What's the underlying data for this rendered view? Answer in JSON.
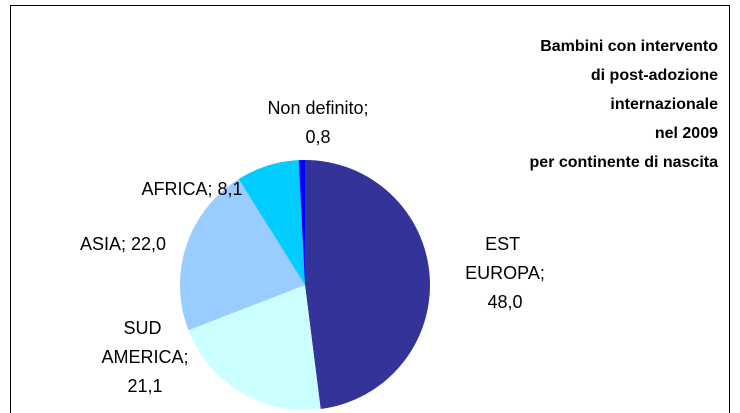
{
  "chart_data": {
    "type": "pie",
    "title": [
      "Bambini con intervento",
      "di post-adozione",
      "internazionale",
      "nel 2009",
      "per continente di nascita"
    ],
    "categories": [
      "EST EUROPA",
      "SUD AMERICA",
      "ASIA",
      "AFRICA",
      "Non definito"
    ],
    "values": [
      48.0,
      21.1,
      22.0,
      8.1,
      0.8
    ],
    "value_labels": [
      "48,0",
      "21,1",
      "22,0",
      "8,1",
      "0,8"
    ],
    "label_separator": ";",
    "colors": [
      "#333399",
      "#ccffff",
      "#99ccff",
      "#00ccff",
      "#0000ff"
    ]
  }
}
